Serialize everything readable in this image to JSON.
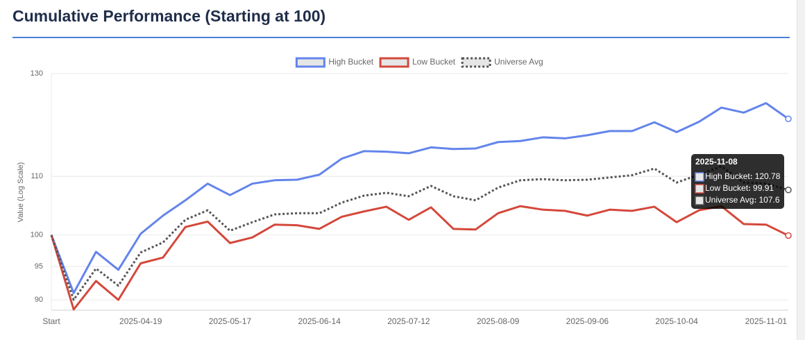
{
  "chart_data": {
    "type": "line",
    "title": "Cumulative Performance (Starting at 100)",
    "y_label": "Value (Log Scale)",
    "log_scale": true,
    "grid": true,
    "legend": "top",
    "categories": [
      "Start",
      null,
      null,
      null,
      "2025-04-19",
      null,
      null,
      null,
      "2025-05-17",
      null,
      null,
      null,
      "2025-06-14",
      null,
      null,
      null,
      "2025-07-12",
      null,
      null,
      null,
      "2025-08-09",
      null,
      null,
      null,
      "2025-09-06",
      null,
      null,
      null,
      "2025-10-04",
      null,
      null,
      null,
      "2025-11-01",
      "2025-11-08"
    ],
    "series": [
      {
        "name": "High Bucket",
        "color": "#6384eb",
        "style": "solid",
        "values": [
          100,
          91.0,
          97.3,
          94.5,
          100.2,
          103.2,
          105.8,
          108.7,
          106.7,
          108.7,
          109.3,
          109.4,
          110.3,
          113.2,
          114.6,
          114.5,
          114.2,
          115.3,
          115.0,
          115.1,
          116.3,
          116.5,
          117.2,
          117.0,
          117.6,
          118.4,
          118.4,
          120.1,
          118.2,
          120.2,
          123.0,
          122.0,
          123.9,
          120.78
        ]
      },
      {
        "name": "Low Bucket",
        "color": "#d4483b",
        "style": "solid",
        "values": [
          100,
          88.6,
          92.8,
          90.0,
          95.5,
          96.4,
          101.3,
          102.2,
          98.7,
          99.6,
          101.7,
          101.6,
          101.0,
          103.0,
          103.9,
          104.7,
          102.5,
          104.6,
          101.0,
          100.9,
          103.6,
          104.8,
          104.2,
          104.0,
          103.2,
          104.2,
          104.0,
          104.7,
          102.1,
          104.1,
          104.8,
          101.8,
          101.7,
          99.91
        ]
      },
      {
        "name": "Universe Avg",
        "color": "#555555",
        "style": "dotted",
        "values": [
          100,
          90.0,
          94.7,
          92.1,
          97.2,
          98.8,
          102.5,
          104.1,
          100.7,
          102.1,
          103.4,
          103.6,
          103.6,
          105.4,
          106.6,
          107.1,
          106.5,
          108.3,
          106.5,
          105.8,
          108.0,
          109.3,
          109.5,
          109.3,
          109.4,
          109.8,
          110.2,
          111.4,
          108.9,
          110.3,
          111.8,
          108.9,
          108.7,
          107.6
        ]
      }
    ],
    "ylim": [
      88.5,
      130
    ],
    "yticks": [
      90,
      95,
      100,
      110,
      130
    ]
  }
}
